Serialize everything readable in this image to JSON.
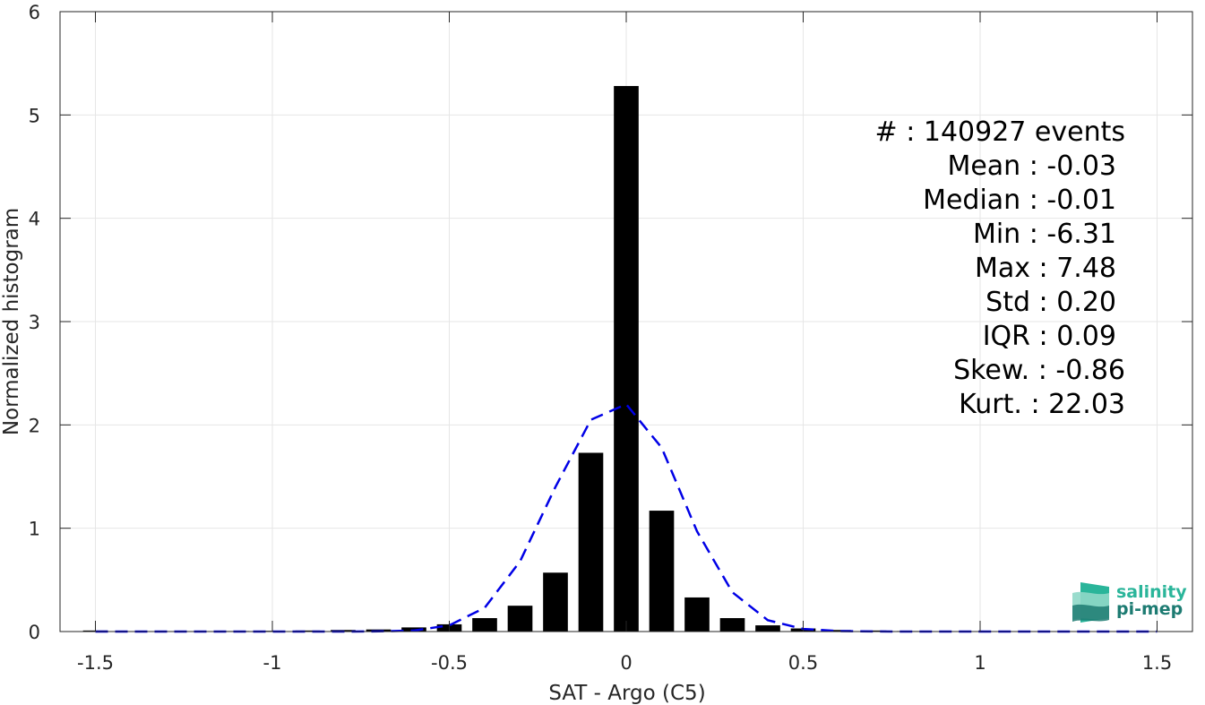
{
  "chart_data": {
    "type": "bar",
    "xlabel": "SAT - Argo (C5)",
    "ylabel": "Normalized histogram",
    "xlim": [
      -1.6,
      1.6
    ],
    "ylim": [
      0,
      6
    ],
    "xticks": [
      -1.5,
      -1,
      -0.5,
      0,
      0.5,
      1,
      1.5
    ],
    "xtick_labels": [
      "-1.5",
      "-1",
      "-0.5",
      "0",
      "0.5",
      "1",
      "1.5"
    ],
    "yticks": [
      0,
      1,
      2,
      3,
      4,
      5,
      6
    ],
    "ytick_labels": [
      "0",
      "1",
      "2",
      "3",
      "4",
      "5",
      "6"
    ],
    "grid": true,
    "bar_color": "#000000",
    "bar_width": 0.07,
    "bars": {
      "x": [
        -1.5,
        -1.4,
        -1.3,
        -1.2,
        -1.1,
        -1.0,
        -0.9,
        -0.8,
        -0.7,
        -0.6,
        -0.5,
        -0.4,
        -0.3,
        -0.2,
        -0.1,
        0.0,
        0.1,
        0.2,
        0.3,
        0.4,
        0.5,
        0.6,
        0.7,
        0.8,
        0.9,
        1.0,
        1.1,
        1.2,
        1.3,
        1.4,
        1.5
      ],
      "values": [
        0.01,
        0.003,
        0.003,
        0.003,
        0.005,
        0.007,
        0.01,
        0.015,
        0.02,
        0.04,
        0.07,
        0.13,
        0.25,
        0.57,
        1.73,
        5.28,
        1.17,
        0.33,
        0.13,
        0.06,
        0.03,
        0.015,
        0.01,
        0.005,
        0.003,
        0.003,
        0.002,
        0.002,
        0.002,
        0.002,
        0.002
      ]
    },
    "fit_curve": {
      "style": "dashed",
      "color": "#0000e6",
      "x": [
        -1.5,
        -1.4,
        -1.3,
        -1.2,
        -1.1,
        -1.0,
        -0.9,
        -0.8,
        -0.7,
        -0.6,
        -0.5,
        -0.4,
        -0.3,
        -0.2,
        -0.1,
        0.0,
        0.1,
        0.2,
        0.3,
        0.4,
        0.5,
        0.6,
        0.7,
        0.8,
        0.9,
        1.0,
        1.1,
        1.2,
        1.3,
        1.4,
        1.5
      ],
      "values": [
        0,
        0,
        0,
        0,
        0,
        0,
        0,
        0,
        0.002,
        0.01,
        0.06,
        0.23,
        0.68,
        1.4,
        2.05,
        2.2,
        1.78,
        0.97,
        0.38,
        0.11,
        0.025,
        0.005,
        0.001,
        0,
        0,
        0,
        0,
        0,
        0,
        0,
        0
      ]
    },
    "stats": [
      {
        "label": "#   : 140927 events"
      },
      {
        "label": "Mean : -0.03"
      },
      {
        "label": "Median : -0.01"
      },
      {
        "label": "Min : -6.31"
      },
      {
        "label": "Max : 7.48"
      },
      {
        "label": "Std : 0.20"
      },
      {
        "label": "IQR : 0.09"
      },
      {
        "label": "Skew. : -0.86"
      },
      {
        "label": "Kurt. : 22.03"
      }
    ]
  },
  "logo": {
    "line1": "salinity",
    "line2": "pi-mep",
    "color1": "#2ab59a",
    "color2": "#1d7b72"
  }
}
